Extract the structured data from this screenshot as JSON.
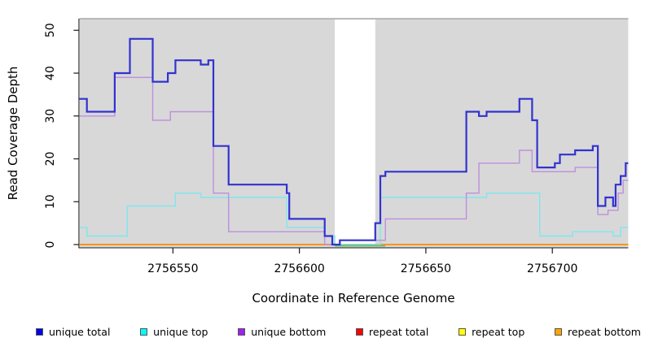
{
  "chart_data": {
    "type": "line",
    "subtype": "step-coverage-plot",
    "title": "",
    "xlabel": "Coordinate in Reference Genome",
    "ylabel": "Read Coverage Depth",
    "xlim": [
      2756513,
      2756730
    ],
    "ylim": [
      0,
      50
    ],
    "x_ticks": [
      2756550,
      2756600,
      2756650,
      2756700
    ],
    "x_tick_labels": [
      "2756550",
      "2756600",
      "2756650",
      "2756700"
    ],
    "y_ticks": [
      0,
      10,
      20,
      30,
      40,
      50
    ],
    "y_tick_labels": [
      "0",
      "10",
      "20",
      "30",
      "40",
      "50"
    ],
    "grid": false,
    "panel_color": "#d8d8d8",
    "gap_region": {
      "start": 2756614,
      "end": 2756630,
      "color": "#ffffff"
    },
    "baseline_overlap": {
      "start": 2756614,
      "end": 2756634,
      "value": 0,
      "color": "#68bf6f"
    },
    "series": [
      {
        "name": "unique total",
        "color": "#3232d0",
        "width": 2.2,
        "end": 2756730,
        "steps": [
          [
            2756513,
            34
          ],
          [
            2756516,
            31
          ],
          [
            2756527,
            40
          ],
          [
            2756533,
            48
          ],
          [
            2756542,
            38
          ],
          [
            2756548,
            40
          ],
          [
            2756551,
            43
          ],
          [
            2756561,
            42
          ],
          [
            2756564,
            43
          ],
          [
            2756566,
            23
          ],
          [
            2756572,
            14
          ],
          [
            2756595,
            12
          ],
          [
            2756596,
            6
          ],
          [
            2756610,
            2
          ],
          [
            2756613,
            0
          ],
          [
            2756616,
            1
          ],
          [
            2756630,
            5
          ],
          [
            2756632,
            16
          ],
          [
            2756634,
            17
          ],
          [
            2756666,
            31
          ],
          [
            2756671,
            30
          ],
          [
            2756674,
            31
          ],
          [
            2756687,
            34
          ],
          [
            2756692,
            29
          ],
          [
            2756694,
            18
          ],
          [
            2756701,
            19
          ],
          [
            2756703,
            21
          ],
          [
            2756709,
            22
          ],
          [
            2756716,
            23
          ],
          [
            2756718,
            9
          ],
          [
            2756721,
            11
          ],
          [
            2756724,
            9
          ],
          [
            2756725,
            14
          ],
          [
            2756727,
            16
          ],
          [
            2756729,
            19
          ]
        ]
      },
      {
        "name": "unique top",
        "color": "#7de7f0",
        "width": 1.4,
        "end": 2756730,
        "steps": [
          [
            2756513,
            4
          ],
          [
            2756516,
            2
          ],
          [
            2756532,
            9
          ],
          [
            2756551,
            12
          ],
          [
            2756561,
            11
          ],
          [
            2756595,
            4
          ],
          [
            2756610,
            2
          ],
          [
            2756614,
            0
          ],
          [
            2756632,
            11
          ],
          [
            2756674,
            12
          ],
          [
            2756695,
            2
          ],
          [
            2756708,
            3
          ],
          [
            2756724,
            2
          ],
          [
            2756727,
            4
          ]
        ]
      },
      {
        "name": "unique bottom",
        "color": "#bd8fdf",
        "width": 1.4,
        "end": 2756730,
        "steps": [
          [
            2756513,
            30
          ],
          [
            2756527,
            39
          ],
          [
            2756542,
            29
          ],
          [
            2756549,
            31
          ],
          [
            2756566,
            12
          ],
          [
            2756572,
            3
          ],
          [
            2756610,
            0
          ],
          [
            2756616,
            1
          ],
          [
            2756634,
            6
          ],
          [
            2756666,
            12
          ],
          [
            2756671,
            19
          ],
          [
            2756687,
            22
          ],
          [
            2756692,
            17
          ],
          [
            2756709,
            18
          ],
          [
            2756718,
            7
          ],
          [
            2756722,
            8
          ],
          [
            2756726,
            12
          ],
          [
            2756728,
            15
          ]
        ]
      },
      {
        "name": "repeat total",
        "color": "#ff0000",
        "width": 1.5,
        "end": 2756730,
        "steps": [
          [
            2756513,
            0
          ]
        ]
      },
      {
        "name": "repeat top",
        "color": "#ffff00",
        "width": 1.5,
        "end": 2756730,
        "steps": [
          [
            2756513,
            0
          ]
        ]
      },
      {
        "name": "repeat bottom",
        "color": "#ff9414",
        "width": 2.0,
        "end": 2756730,
        "steps": [
          [
            2756513,
            0
          ]
        ]
      }
    ]
  },
  "legend": {
    "items": [
      {
        "label": "unique total",
        "color": "#0000ee"
      },
      {
        "label": "unique top",
        "color": "#00ffff"
      },
      {
        "label": "unique bottom",
        "color": "#a020f0"
      },
      {
        "label": "repeat total",
        "color": "#ff0000"
      },
      {
        "label": "repeat top",
        "color": "#ffff00"
      },
      {
        "label": "repeat bottom",
        "color": "#ffa500"
      }
    ]
  }
}
